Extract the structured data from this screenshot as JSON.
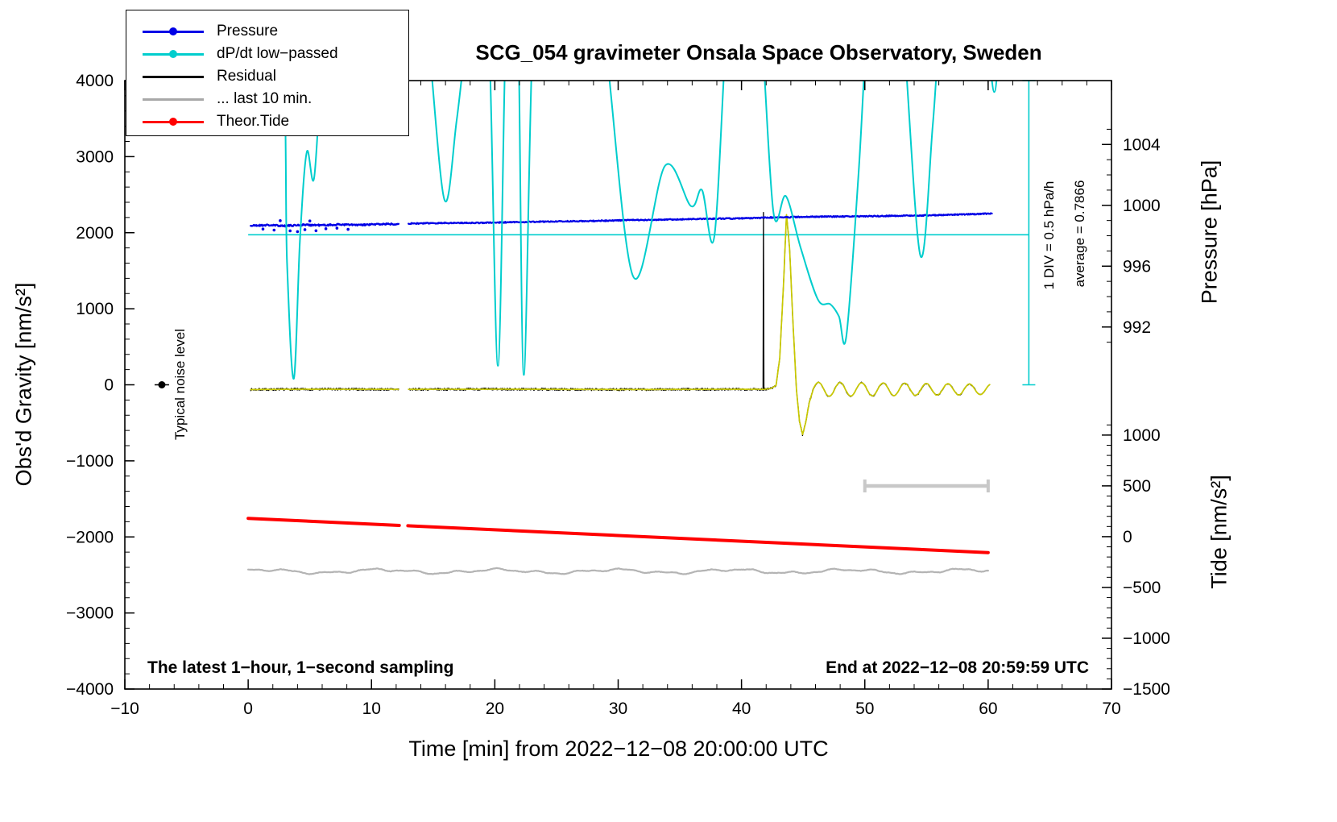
{
  "page": {
    "title": "SCG_054 gravimeter Onsala Space Observatory, Sweden"
  },
  "labels": {
    "x": "Time [min] from 2022−12−08 20:00:00 UTC",
    "y_left": "Obs'd Gravity [nm/s²]",
    "y_right_pressure": "Pressure [hPa]",
    "y_right_tide": "Tide [nm/s²]",
    "noise": "Typical noise level",
    "div1": "1 DIV = 0.5 hPa/h",
    "div2": "average = 0.7866",
    "bottom_left": "The latest 1−hour, 1−second sampling",
    "bottom_right": "End at 2022−12−08 20:59:59 UTC"
  },
  "legend": {
    "items": [
      {
        "label": "Pressure",
        "color": "#0000e6",
        "marker": "dot"
      },
      {
        "label": "dP/dt low−passed",
        "color": "#00cdcd",
        "marker": "dot"
      },
      {
        "label": "Residual",
        "color": "#000000",
        "marker": "line"
      },
      {
        "label": "... last 10 min.",
        "color": "#a8a8a8",
        "marker": "line"
      },
      {
        "label": "Theor.Tide",
        "color": "#ff0000",
        "marker": "dot"
      }
    ]
  },
  "chart_data": {
    "type": "line",
    "title": "SCG_054 gravimeter Onsala Space Observatory, Sweden",
    "xlabel": "Time [min] from 2022−12−08 20:00:00 UTC",
    "x_range": [
      -10,
      70
    ],
    "grid": false,
    "axes": {
      "x": {
        "range": [
          -10,
          70
        ],
        "minor_step": 2,
        "ticks": [
          {
            "v": -10,
            "label": "−10"
          },
          {
            "v": 0,
            "label": "0"
          },
          {
            "v": 10,
            "label": "10"
          },
          {
            "v": 20,
            "label": "20"
          },
          {
            "v": 30,
            "label": "30"
          },
          {
            "v": 40,
            "label": "40"
          },
          {
            "v": 50,
            "label": "50"
          },
          {
            "v": 60,
            "label": "60"
          },
          {
            "v": 70,
            "label": "70"
          }
        ]
      },
      "gravity": {
        "label": "Obs'd Gravity [nm/s²]",
        "range": [
          -4000,
          4000
        ],
        "minor_step": 200,
        "ticks": [
          {
            "v": 4000,
            "label": "4000"
          },
          {
            "v": 3000,
            "label": "3000"
          },
          {
            "v": 2000,
            "label": "2000"
          },
          {
            "v": 1000,
            "label": "1000"
          },
          {
            "v": 0,
            "label": "0"
          },
          {
            "v": -1000,
            "label": "−1000"
          },
          {
            "v": -2000,
            "label": "−2000"
          },
          {
            "v": -3000,
            "label": "−3000"
          },
          {
            "v": -4000,
            "label": "−4000"
          }
        ]
      },
      "pressure": {
        "label": "Pressure [hPa]",
        "gravity_at_992": 760,
        "gravity_per_hpa": 200,
        "minor_step": 1,
        "minor_range": [
          991,
          1005
        ],
        "ticks": [
          {
            "v": 1004,
            "label": "1004"
          },
          {
            "v": 1000,
            "label": "1000"
          },
          {
            "v": 996,
            "label": "996"
          },
          {
            "v": 992,
            "label": "992"
          }
        ]
      },
      "tide": {
        "label": "Tide [nm/s²]",
        "gravity_at_minus1500": -4000,
        "gravity_per_unit": 1.3356,
        "minor_step": 100,
        "minor_range": [
          -1500,
          1100
        ],
        "ticks": [
          {
            "v": 1000,
            "label": "1000"
          },
          {
            "v": 500,
            "label": "500"
          },
          {
            "v": 0,
            "label": "0"
          },
          {
            "v": -500,
            "label": "−500"
          },
          {
            "v": -1000,
            "label": "−1000"
          },
          {
            "v": -1500,
            "label": "−1500"
          }
        ]
      }
    },
    "series": [
      {
        "name": "last-10-min",
        "legend": "... last 10 min.",
        "color": "#b4b4b4",
        "width": 2.2,
        "axis": "gravity",
        "render": "wave",
        "seed": 11,
        "segments": [
          {
            "wave": {
              "from": 0,
              "to": 60,
              "base": -2452,
              "step": 0.08,
              "noise": 3,
              "components": [
                [
                  22,
                  9.5,
                  0.8
                ],
                [
                  13,
                  3.4,
                  2.0
                ],
                [
                  6,
                  1.6,
                  4.0
                ]
              ]
            }
          }
        ]
      },
      {
        "name": "theor-tide",
        "legend": "Theor.Tide",
        "color": "#ff0000",
        "width": 4,
        "axis": "gravity",
        "render": "line",
        "segments": [
          {
            "anchors": [
              [
                0,
                -1756
              ],
              [
                12.25,
                -1849
              ]
            ]
          },
          {
            "anchors": [
              [
                12.95,
                -1853
              ],
              [
                60,
                -2206
              ]
            ]
          }
        ]
      },
      {
        "name": "residual",
        "legend": "Residual",
        "color": "#000000",
        "width": 1.3,
        "axis": "gravity",
        "render": "noisy",
        "seed": 7,
        "noise_amp": 15,
        "noise_step": 0.035,
        "segments": [
          {
            "anchors": [
              [
                0.2,
                -62
              ],
              [
                6,
                -58
              ],
              [
                12.2,
                -60
              ]
            ]
          },
          {
            "anchors": [
              [
                13.0,
                -60
              ],
              [
                20,
                -57
              ],
              [
                30,
                -62
              ],
              [
                41.9,
                -58
              ],
              [
                42.4,
                -45
              ],
              [
                42.8,
                -10
              ],
              [
                43.1,
                350
              ],
              [
                43.4,
                1300
              ],
              [
                43.65,
                2240
              ],
              [
                43.9,
                1800
              ],
              [
                44.15,
                900
              ],
              [
                44.45,
                -50
              ],
              [
                44.7,
                -480
              ],
              [
                44.95,
                -655
              ],
              [
                45.2,
                -500
              ],
              [
                45.5,
                -230
              ],
              [
                45.8,
                -70
              ]
            ],
            "ripple": {
              "from": 45.8,
              "to": 60.2,
              "base": -60,
              "amp0": 95,
              "amp1": 68,
              "period": 1.75
            }
          }
        ]
      },
      {
        "name": "residual-glitch",
        "color": "#000000",
        "width": 1.3,
        "axis": "gravity",
        "render": "line",
        "segments": [
          {
            "anchors": [
              [
                41.75,
                -60
              ],
              [
                41.78,
                2265
              ],
              [
                41.82,
                -60
              ]
            ]
          }
        ]
      },
      {
        "name": "residual-lowpass",
        "color": "#c9c900",
        "width": 1.7,
        "axis": "gravity",
        "render": "noisy",
        "seed": 3,
        "noise_amp": 3,
        "noise_step": 0.05,
        "segments": [
          {
            "anchors": [
              [
                0.2,
                -62
              ],
              [
                6,
                -58
              ],
              [
                12.2,
                -60
              ]
            ]
          },
          {
            "anchors": [
              [
                13.0,
                -60
              ],
              [
                20,
                -57
              ],
              [
                30,
                -62
              ],
              [
                41.9,
                -58
              ],
              [
                42.4,
                -45
              ],
              [
                42.8,
                -10
              ],
              [
                43.1,
                350
              ],
              [
                43.4,
                1300
              ],
              [
                43.65,
                2240
              ],
              [
                43.9,
                1800
              ],
              [
                44.15,
                900
              ],
              [
                44.45,
                -50
              ],
              [
                44.7,
                -480
              ],
              [
                44.95,
                -655
              ],
              [
                45.2,
                -500
              ],
              [
                45.5,
                -230
              ],
              [
                45.8,
                -70
              ]
            ],
            "ripple": {
              "from": 45.8,
              "to": 60.2,
              "base": -60,
              "amp0": 95,
              "amp1": 68,
              "period": 1.75
            }
          }
        ]
      },
      {
        "name": "pressure",
        "legend": "Pressure",
        "color": "#0000e6",
        "width": 2.3,
        "axis": "pressure",
        "render": "noisy",
        "seed": 21,
        "noise_amp": 0.035,
        "noise_step": 0.05,
        "segments": [
          {
            "anchors": [
              [
                0.2,
                998.66
              ],
              [
                1.5,
                998.7
              ],
              [
                3,
                998.65
              ],
              [
                4.5,
                998.72
              ],
              [
                6,
                998.69
              ],
              [
                7.5,
                998.74
              ],
              [
                9,
                998.7
              ],
              [
                10.5,
                998.76
              ],
              [
                12.2,
                998.78
              ]
            ],
            "noise_amp": 0.055
          },
          {
            "anchors": [
              [
                13.0,
                998.8
              ],
              [
                16,
                998.84
              ],
              [
                19,
                998.85
              ],
              [
                22,
                998.9
              ],
              [
                25,
                998.94
              ],
              [
                28,
                998.97
              ],
              [
                31,
                999.03
              ],
              [
                34,
                999.06
              ],
              [
                37,
                999.11
              ],
              [
                40,
                999.14
              ],
              [
                43,
                999.21
              ],
              [
                46,
                999.25
              ],
              [
                49,
                999.27
              ],
              [
                52,
                999.3
              ],
              [
                55,
                999.34
              ],
              [
                58,
                999.4
              ],
              [
                60.3,
                999.46
              ]
            ]
          }
        ],
        "outlier_dots": [
          [
            1.2,
            998.44
          ],
          [
            2.1,
            998.37
          ],
          [
            3.4,
            998.32
          ],
          [
            4.0,
            998.27
          ],
          [
            4.6,
            998.4
          ],
          [
            5.5,
            998.33
          ],
          [
            6.3,
            998.46
          ],
          [
            8.1,
            998.42
          ],
          [
            2.6,
            998.99
          ],
          [
            5.0,
            998.97
          ],
          [
            7.2,
            998.5
          ]
        ]
      },
      {
        "name": "dpdt-lowpassed",
        "legend": "dP/dt low−passed",
        "color": "#00cdcd",
        "width": 2,
        "axis": "gravity",
        "render": "smooth",
        "segments": [
          {
            "anchors": [
              [
                -0.5,
                5200
              ],
              [
                2.6,
                4700
              ],
              [
                3.15,
                1600
              ],
              [
                3.7,
                80
              ],
              [
                4.2,
                1900
              ],
              [
                4.75,
                3060
              ],
              [
                5.35,
                2720
              ],
              [
                6.0,
                4300
              ],
              [
                6.5,
                4700
              ],
              [
                6.95,
                3370
              ],
              [
                7.5,
                4700
              ],
              [
                8.3,
                5300
              ],
              [
                13.5,
                5300
              ],
              [
                14.5,
                4700
              ],
              [
                15.9,
                2440
              ],
              [
                16.9,
                3470
              ],
              [
                17.8,
                4700
              ],
              [
                18.6,
                5300
              ],
              [
                19.5,
                4700
              ],
              [
                20.25,
                250
              ],
              [
                20.9,
                4700
              ],
              [
                21.5,
                5300
              ],
              [
                21.9,
                4700
              ],
              [
                22.35,
                130
              ],
              [
                23.1,
                4700
              ],
              [
                24,
                5300
              ],
              [
                27.3,
                5300
              ],
              [
                28.8,
                4700
              ],
              [
                31.2,
                1430
              ],
              [
                33.8,
                2880
              ],
              [
                35.9,
                2350
              ],
              [
                36.8,
                2560
              ],
              [
                37.8,
                1950
              ],
              [
                38.8,
                4700
              ],
              [
                39.5,
                5300
              ],
              [
                40.8,
                5300
              ],
              [
                41.6,
                4700
              ],
              [
                42.6,
                2260
              ],
              [
                43.6,
                2480
              ],
              [
                44.8,
                1800
              ],
              [
                46.2,
                1120
              ],
              [
                47.2,
                1060
              ],
              [
                47.9,
                900
              ],
              [
                48.5,
                640
              ],
              [
                49.5,
                2800
              ],
              [
                50.2,
                4700
              ],
              [
                51,
                5300
              ],
              [
                52.3,
                5300
              ],
              [
                53.1,
                4700
              ],
              [
                54.5,
                1700
              ],
              [
                55.5,
                3400
              ],
              [
                56.1,
                4700
              ],
              [
                56.9,
                5300
              ],
              [
                58.8,
                5300
              ],
              [
                59.8,
                4700
              ],
              [
                60.5,
                3850
              ],
              [
                61.0,
                4700
              ],
              [
                61.4,
                5300
              ]
            ]
          }
        ]
      }
    ],
    "annotations": {
      "noise_dot": {
        "t": -7,
        "gravity": 0,
        "label": "Typical noise level"
      },
      "average_line": {
        "gravity": 1973,
        "t_start": 0,
        "t_end": 63.3,
        "color": "#00cdcd"
      },
      "div_indicator": {
        "t": 63.3,
        "g_start": 0,
        "g_end": 4000,
        "color": "#00cdcd",
        "label_1": "1 DIV = 0.5 hPa/h",
        "label_2": "average = 0.7866"
      },
      "scale_bar": {
        "t_start": 50,
        "t_end": 60,
        "gravity": -1330,
        "color": "#c8c8c8"
      },
      "bottom_left": "The latest 1−hour, 1−second sampling",
      "bottom_right": "End at 2022−12−08 20:59:59 UTC"
    }
  }
}
